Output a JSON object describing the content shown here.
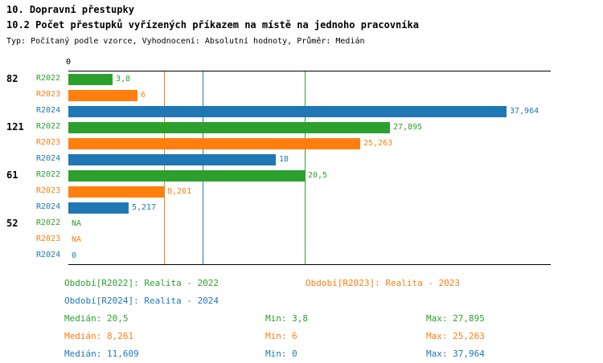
{
  "chart_data": {
    "type": "bar",
    "orientation": "horizontal",
    "title": "10. Dopravní přestupky",
    "subtitle": "10.2 Počet přestupků vyřízených příkazem na místě na jednoho pracovníka",
    "note": "Typ: Počítaný podle vzorce, Vyhodnocení: Absolutní hodnoty, Průměr: Medián",
    "axis": {
      "origin_label": "0",
      "xmin": 0,
      "xmax": 41.8,
      "grid": false
    },
    "series_colors": {
      "R2022": "#2ca02c",
      "R2023": "#ff7f0e",
      "R2024": "#1f77b4"
    },
    "groups": [
      {
        "label": "82",
        "bars": [
          {
            "series": "R2022",
            "value": 3.8,
            "display": "3,8"
          },
          {
            "series": "R2023",
            "value": 6,
            "display": "6"
          },
          {
            "series": "R2024",
            "value": 37.964,
            "display": "37,964"
          }
        ]
      },
      {
        "label": "121",
        "bars": [
          {
            "series": "R2022",
            "value": 27.895,
            "display": "27,895"
          },
          {
            "series": "R2023",
            "value": 25.263,
            "display": "25,263"
          },
          {
            "series": "R2024",
            "value": 18,
            "display": "18"
          }
        ]
      },
      {
        "label": "61",
        "bars": [
          {
            "series": "R2022",
            "value": 20.5,
            "display": "20,5"
          },
          {
            "series": "R2023",
            "value": 8.261,
            "display": "8,261"
          },
          {
            "series": "R2024",
            "value": 5.217,
            "display": "5,217"
          }
        ]
      },
      {
        "label": "52",
        "bars": [
          {
            "series": "R2022",
            "value": null,
            "display": "NA"
          },
          {
            "series": "R2023",
            "value": null,
            "display": "NA"
          },
          {
            "series": "R2024",
            "value": 0,
            "display": "0"
          }
        ]
      }
    ],
    "median_lines": [
      {
        "series": "R2022",
        "value": 20.5
      },
      {
        "series": "R2023",
        "value": 8.261
      },
      {
        "series": "R2024",
        "value": 11.609
      }
    ]
  },
  "legend": [
    {
      "series": "R2022",
      "label": "Období[R2022]: Realita - 2022"
    },
    {
      "series": "R2023",
      "label": "Období[R2023]: Realita - 2023"
    },
    {
      "series": "R2024",
      "label": "Období[R2024]: Realita - 2024"
    }
  ],
  "stats": [
    {
      "series": "R2022",
      "median": "Medián: 20,5",
      "min": "Min: 3,8",
      "max": "Max: 27,895"
    },
    {
      "series": "R2023",
      "median": "Medián: 8,261",
      "min": "Min: 6",
      "max": "Max: 25,263"
    },
    {
      "series": "R2024",
      "median": "Medián: 11,609",
      "min": "Min: 0",
      "max": "Max: 37,964"
    }
  ]
}
